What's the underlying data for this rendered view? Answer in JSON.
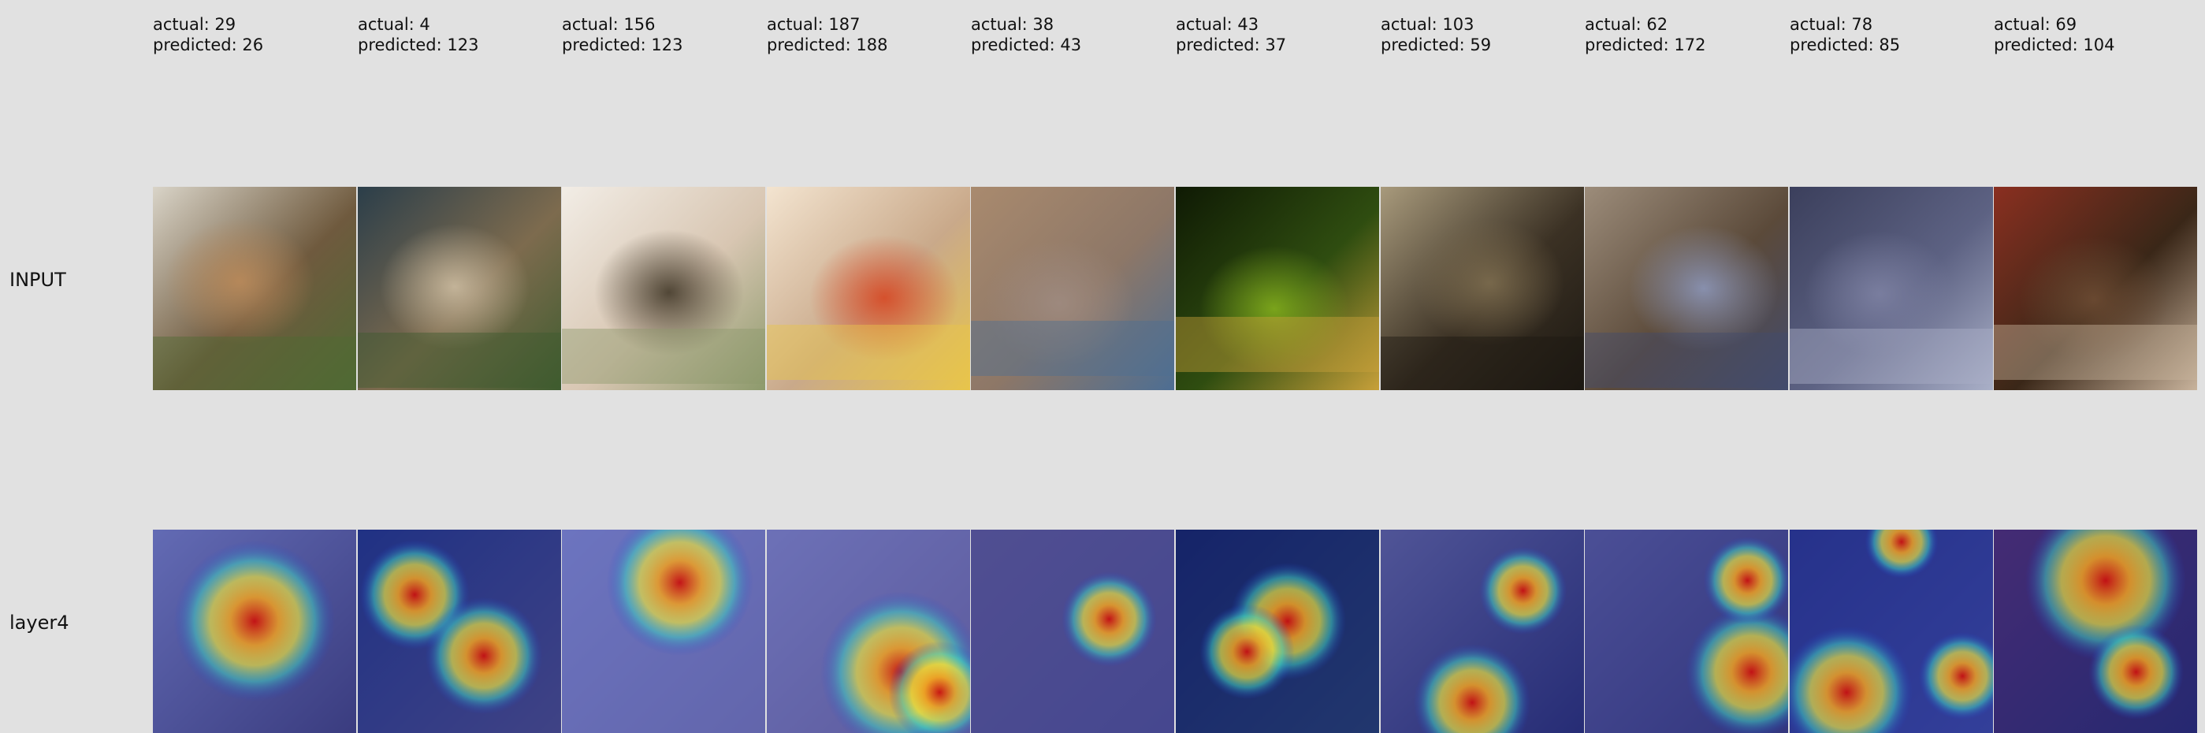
{
  "rows": {
    "input_label": "INPUT",
    "layer_label": "layer4"
  },
  "samples": [
    {
      "actual_text": "actual: 29",
      "predicted_text": "predicted: 26",
      "subject": "curly brown dog on grass",
      "colors": [
        "#6f5a3e",
        "#b8895a",
        "#4f6a34",
        "#d9d4c8"
      ]
    },
    {
      "actual_text": "actual: 4",
      "predicted_text": "predicted: 123",
      "subject": "child by a fence",
      "colors": [
        "#7d6b4e",
        "#c7b79c",
        "#3f5c2f",
        "#2b3e4a"
      ]
    },
    {
      "actual_text": "actual: 156",
      "predicted_text": "predicted: 123",
      "subject": "baby with sunglasses",
      "colors": [
        "#d8c6b2",
        "#4a4030",
        "#8d9a6c",
        "#f2ede6"
      ]
    },
    {
      "actual_text": "actual: 187",
      "predicted_text": "predicted: 188",
      "subject": "fruit with faces",
      "colors": [
        "#c9a98a",
        "#d64c28",
        "#e8c54a",
        "#f3e4d0"
      ]
    },
    {
      "actual_text": "actual: 38",
      "predicted_text": "predicted: 43",
      "subject": "insect on a hand",
      "colors": [
        "#8d7767",
        "#9e8a7f",
        "#4d6e93",
        "#a98a6e"
      ]
    },
    {
      "actual_text": "actual: 43",
      "predicted_text": "predicted: 37",
      "subject": "dragonfly on a stem",
      "colors": [
        "#2f4d10",
        "#7ea81c",
        "#c7a03a",
        "#0f1a04"
      ]
    },
    {
      "actual_text": "actual: 103",
      "predicted_text": "predicted: 59",
      "subject": "ornate dark panel",
      "colors": [
        "#3b3124",
        "#7a6a4d",
        "#1c1812",
        "#a89a7c"
      ]
    },
    {
      "actual_text": "actual: 62",
      "predicted_text": "predicted: 172",
      "subject": "person in apron",
      "colors": [
        "#5b4a3a",
        "#8a93b3",
        "#434c6d",
        "#9c8c7a"
      ]
    },
    {
      "actual_text": "actual: 78",
      "predicted_text": "predicted: 85",
      "subject": "stone tower",
      "colors": [
        "#5d6283",
        "#7b7fa0",
        "#aab0c8",
        "#3b3f5c"
      ]
    },
    {
      "actual_text": "actual: 69",
      "predicted_text": "predicted: 104",
      "subject": "dark interior with basin",
      "colors": [
        "#3a2718",
        "#6b4a32",
        "#c8b39c",
        "#8a2f20"
      ]
    }
  ],
  "heatmaps": [
    {
      "spots": [
        [
          0.5,
          0.45,
          0.22
        ]
      ]
    },
    {
      "spots": [
        [
          0.28,
          0.32,
          0.15
        ],
        [
          0.62,
          0.62,
          0.16
        ]
      ]
    },
    {
      "spots": [
        [
          0.58,
          0.26,
          0.2
        ]
      ]
    },
    {
      "spots": [
        [
          0.66,
          0.7,
          0.22
        ],
        [
          0.85,
          0.8,
          0.14
        ]
      ]
    },
    {
      "spots": [
        [
          0.68,
          0.44,
          0.13
        ]
      ]
    },
    {
      "spots": [
        [
          0.55,
          0.45,
          0.16
        ],
        [
          0.35,
          0.6,
          0.13
        ]
      ]
    },
    {
      "spots": [
        [
          0.45,
          0.85,
          0.16
        ],
        [
          0.7,
          0.3,
          0.12
        ]
      ]
    },
    {
      "spots": [
        [
          0.82,
          0.7,
          0.18
        ],
        [
          0.8,
          0.25,
          0.12
        ]
      ]
    },
    {
      "spots": [
        [
          0.55,
          0.06,
          0.1
        ],
        [
          0.28,
          0.8,
          0.18
        ],
        [
          0.85,
          0.72,
          0.12
        ]
      ]
    },
    {
      "spots": [
        [
          0.55,
          0.25,
          0.22
        ],
        [
          0.7,
          0.7,
          0.13
        ]
      ]
    }
  ]
}
